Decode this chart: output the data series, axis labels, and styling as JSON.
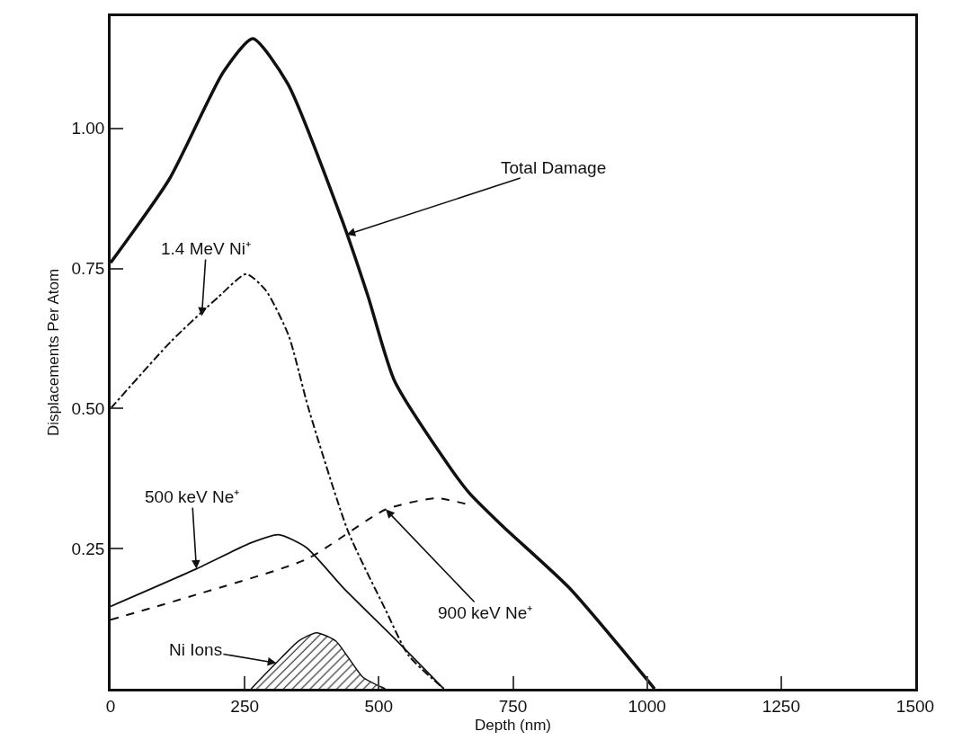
{
  "chart_data": {
    "type": "line",
    "xlabel": "Depth (nm)",
    "ylabel": "Displacements Per Atom",
    "xlim": [
      0,
      1500
    ],
    "xticks": [
      0,
      250,
      500,
      750,
      1000,
      1250,
      1500
    ],
    "ylim": [
      0,
      1.2
    ],
    "yticks": [
      {
        "value": 0.25,
        "label": "0.25"
      },
      {
        "value": 0.5,
        "label": "0.50"
      },
      {
        "value": 0.75,
        "label": "0.75"
      },
      {
        "value": 1,
        "label": "1.00"
      }
    ],
    "grid": false,
    "marker": "none",
    "series": [
      {
        "color": "#111111",
        "line_style": "solid",
        "x": [
          0,
          110,
          210,
          265,
          330,
          430,
          480,
          529,
          629,
          668,
          731,
          855,
          1014
        ],
        "values": [
          0.76,
          0.91,
          1.1,
          1.16,
          1.08,
          0.84,
          0.7,
          0.55,
          0.4,
          0.35,
          0.29,
          0.18,
          0
        ]
      },
      {
        "color": "#111111",
        "line_style": "dashdot",
        "x": [
          0,
          113,
          202,
          253,
          290,
          332,
          369,
          443,
          513,
          555,
          621
        ],
        "values": [
          0.5,
          0.62,
          0.7,
          0.74,
          0.71,
          0.63,
          0.5,
          0.28,
          0.14,
          0.06,
          0
        ]
      },
      {
        "color": "#111111",
        "line_style": "solid",
        "x": [
          0,
          160,
          261,
          313,
          365,
          434,
          529,
          621
        ],
        "values": [
          0.147,
          0.214,
          0.26,
          0.275,
          0.252,
          0.18,
          0.09,
          0
        ]
      },
      {
        "color": "#111111",
        "line_style": "dashed",
        "x": [
          0,
          160,
          365,
          513,
          607,
          661
        ],
        "values": [
          0.123,
          0.168,
          0.231,
          0.32,
          0.34,
          0.33
        ]
      },
      {
        "type": "area",
        "color": "#111111",
        "line_style": "solid",
        "x": [
          262,
          319,
          350,
          384,
          420,
          443,
          471,
          512
        ],
        "values": [
          0,
          0.056,
          0.085,
          0.1,
          0.085,
          0.056,
          0.02,
          0
        ]
      }
    ],
    "annotations": [
      {
        "text": "Total Damage",
        "x": 440,
        "y": 0.81
      },
      {
        "text": "1.4 MeV Ni⁺",
        "x": 170,
        "y": 0.665
      },
      {
        "text": "500 keV Ne⁺",
        "x": 160,
        "y": 0.214
      },
      {
        "text": "900 keV Ne⁺",
        "x": 513,
        "y": 0.32
      },
      {
        "text": "Ni Ions",
        "x": 309,
        "y": 0.046
      }
    ]
  }
}
